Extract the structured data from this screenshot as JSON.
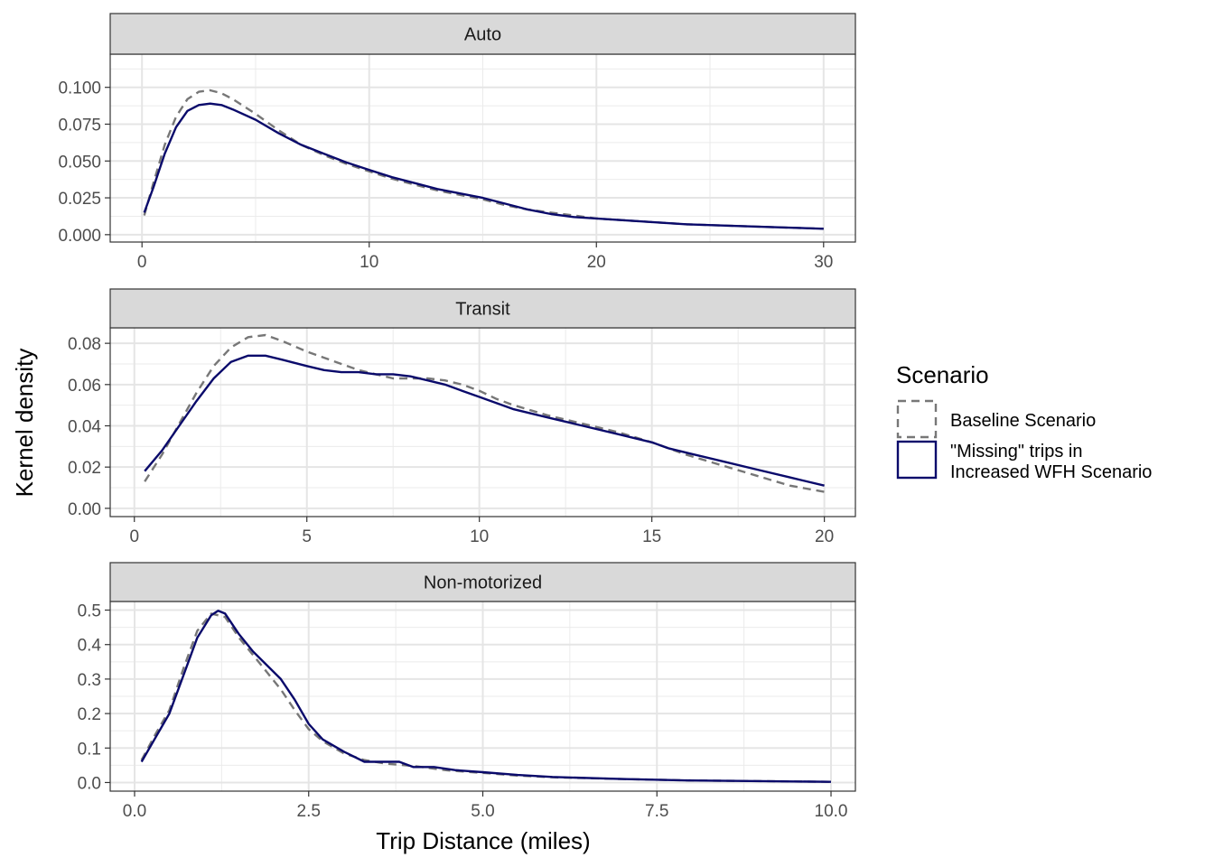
{
  "chart_data": {
    "type": "line",
    "xlabel": "Trip Distance (miles)",
    "ylabel": "Kernel density",
    "legend": {
      "title": "Scenario",
      "position": "right",
      "entries": [
        {
          "key": "baseline",
          "label": "Baseline Scenario",
          "label_lines": [
            "Baseline Scenario"
          ],
          "color": "#777777",
          "dash": "dashed"
        },
        {
          "key": "missing",
          "label": "\"Missing\" trips in Increased WFH Scenario",
          "label_lines": [
            "\"Missing\" trips in",
            "Increased WFH Scenario"
          ],
          "color": "#0a0a6b",
          "dash": "solid"
        }
      ]
    },
    "grid": true,
    "panels": [
      {
        "title": "Auto",
        "xlim": [
          -1.4,
          31.4
        ],
        "ylim": [
          -0.005,
          0.1225
        ],
        "xticks": [
          0,
          10,
          20,
          30
        ],
        "xtick_labels": [
          "0",
          "10",
          "20",
          "30"
        ],
        "xminor": [
          5,
          15,
          25
        ],
        "yticks": [
          0,
          0.025,
          0.05,
          0.075,
          0.1
        ],
        "ytick_labels": [
          "0.000",
          "0.025",
          "0.050",
          "0.075",
          "0.100"
        ],
        "yminor": [
          0.0125,
          0.0375,
          0.0625,
          0.0875,
          0.1125
        ],
        "series": [
          {
            "key": "baseline",
            "x": [
              0.1,
              0.5,
              1,
              1.5,
              2,
              2.5,
              3,
              3.5,
              4,
              5,
              6,
              7,
              8,
              9,
              10,
              11,
              12,
              13,
              14,
              15,
              16,
              17,
              18,
              19,
              20,
              22,
              24,
              26,
              28,
              30
            ],
            "values": [
              0.013,
              0.035,
              0.061,
              0.08,
              0.092,
              0.097,
              0.098,
              0.096,
              0.092,
              0.082,
              0.071,
              0.061,
              0.054,
              0.048,
              0.043,
              0.038,
              0.034,
              0.03,
              0.027,
              0.024,
              0.02,
              0.017,
              0.015,
              0.013,
              0.011,
              0.009,
              0.007,
              0.006,
              0.005,
              0.004
            ]
          },
          {
            "key": "missing",
            "x": [
              0.1,
              0.5,
              1,
              1.5,
              2,
              2.5,
              3,
              3.5,
              4,
              5,
              6,
              7,
              8,
              9,
              10,
              11,
              12,
              13,
              14,
              15,
              16,
              17,
              18,
              19,
              20,
              22,
              24,
              26,
              28,
              30
            ],
            "values": [
              0.015,
              0.032,
              0.055,
              0.073,
              0.084,
              0.088,
              0.089,
              0.088,
              0.085,
              0.078,
              0.069,
              0.061,
              0.055,
              0.049,
              0.044,
              0.039,
              0.035,
              0.031,
              0.028,
              0.025,
              0.021,
              0.017,
              0.014,
              0.012,
              0.011,
              0.009,
              0.007,
              0.006,
              0.005,
              0.004
            ]
          }
        ]
      },
      {
        "title": "Transit",
        "xlim": [
          -0.7,
          20.9
        ],
        "ylim": [
          -0.004,
          0.0875
        ],
        "xticks": [
          0,
          5,
          10,
          15,
          20
        ],
        "xtick_labels": [
          "0",
          "5",
          "10",
          "15",
          "20"
        ],
        "xminor": [
          2.5,
          7.5,
          12.5,
          17.5
        ],
        "yticks": [
          0,
          0.02,
          0.04,
          0.06,
          0.08
        ],
        "ytick_labels": [
          "0.00",
          "0.02",
          "0.04",
          "0.06",
          "0.08"
        ],
        "yminor": [
          0.01,
          0.03,
          0.05,
          0.07
        ],
        "series": [
          {
            "key": "baseline",
            "x": [
              0.3,
              0.8,
              1.3,
              1.8,
              2.3,
              2.8,
              3.3,
              3.8,
              4.3,
              5,
              5.5,
              6,
              6.5,
              7,
              7.5,
              8,
              8.5,
              9,
              9.5,
              10,
              10.5,
              11,
              12,
              13,
              14,
              15,
              15.5,
              16,
              17,
              18,
              19,
              20
            ],
            "values": [
              0.013,
              0.026,
              0.041,
              0.056,
              0.069,
              0.078,
              0.083,
              0.084,
              0.081,
              0.076,
              0.073,
              0.07,
              0.067,
              0.065,
              0.063,
              0.063,
              0.063,
              0.062,
              0.06,
              0.057,
              0.053,
              0.05,
              0.045,
              0.041,
              0.037,
              0.032,
              0.029,
              0.026,
              0.021,
              0.016,
              0.011,
              0.008
            ]
          },
          {
            "key": "missing",
            "x": [
              0.3,
              0.8,
              1.3,
              1.8,
              2.3,
              2.8,
              3.3,
              3.8,
              4.3,
              5,
              5.5,
              6,
              6.5,
              7,
              7.5,
              8,
              8.5,
              9,
              9.5,
              10,
              10.5,
              11,
              12,
              13,
              14,
              15,
              15.5,
              16,
              17,
              18,
              19,
              20
            ],
            "values": [
              0.018,
              0.028,
              0.04,
              0.052,
              0.063,
              0.071,
              0.074,
              0.074,
              0.072,
              0.069,
              0.067,
              0.066,
              0.066,
              0.065,
              0.065,
              0.064,
              0.062,
              0.06,
              0.057,
              0.054,
              0.051,
              0.048,
              0.044,
              0.04,
              0.036,
              0.032,
              0.029,
              0.027,
              0.023,
              0.019,
              0.015,
              0.011
            ]
          }
        ]
      },
      {
        "title": "Non-motorized",
        "xlim": [
          -0.35,
          10.35
        ],
        "ylim": [
          -0.025,
          0.525
        ],
        "xticks": [
          0,
          2.5,
          5,
          7.5,
          10
        ],
        "xtick_labels": [
          "0.0",
          "2.5",
          "5.0",
          "7.5",
          "10.0"
        ],
        "xminor": [
          1.25,
          3.75,
          6.25,
          8.75
        ],
        "yticks": [
          0,
          0.1,
          0.2,
          0.3,
          0.4,
          0.5
        ],
        "ytick_labels": [
          "0.0",
          "0.1",
          "0.2",
          "0.3",
          "0.4",
          "0.5"
        ],
        "yminor": [
          0.05,
          0.15,
          0.25,
          0.35,
          0.45
        ],
        "series": [
          {
            "key": "baseline",
            "x": [
              0.1,
              0.3,
              0.5,
              0.7,
              0.9,
              1.1,
              1.3,
              1.5,
              1.7,
              1.9,
              2.1,
              2.3,
              2.5,
              2.7,
              3,
              3.3,
              3.6,
              4,
              4.5,
              5,
              5.5,
              6,
              7,
              8,
              9,
              10
            ],
            "values": [
              0.065,
              0.14,
              0.21,
              0.33,
              0.44,
              0.49,
              0.48,
              0.42,
              0.37,
              0.32,
              0.27,
              0.21,
              0.155,
              0.12,
              0.085,
              0.065,
              0.055,
              0.048,
              0.035,
              0.028,
              0.02,
              0.015,
              0.01,
              0.006,
              0.004,
              0.002
            ]
          },
          {
            "key": "missing",
            "x": [
              0.1,
              0.3,
              0.5,
              0.7,
              0.9,
              1.1,
              1.2,
              1.3,
              1.5,
              1.7,
              1.9,
              2.1,
              2.3,
              2.5,
              2.7,
              3,
              3.3,
              3.6,
              3.8,
              4,
              4.3,
              4.6,
              5,
              5.5,
              6,
              7,
              8,
              9,
              10
            ],
            "values": [
              0.06,
              0.13,
              0.2,
              0.31,
              0.42,
              0.485,
              0.498,
              0.49,
              0.43,
              0.38,
              0.34,
              0.3,
              0.24,
              0.17,
              0.125,
              0.09,
              0.06,
              0.06,
              0.06,
              0.045,
              0.045,
              0.036,
              0.03,
              0.022,
              0.016,
              0.01,
              0.006,
              0.004,
              0.002
            ]
          }
        ]
      }
    ]
  }
}
